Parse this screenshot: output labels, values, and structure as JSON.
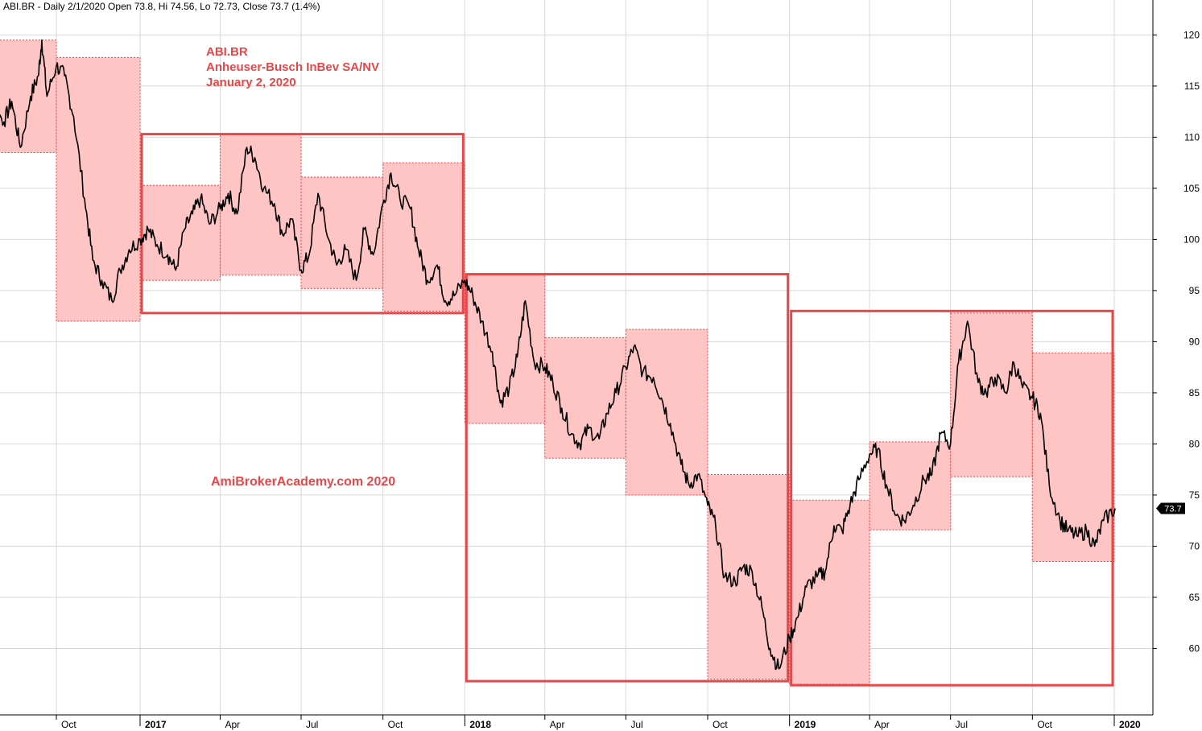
{
  "header": {
    "symbol": "ABI.BR",
    "interval": "Daily",
    "date": "2/1/2020",
    "text": "ABI.BR - Daily 2/1/2020 Open 73.8, Hi 74.56, Lo 72.73, Close 73.7 (1.4%)"
  },
  "annotations": {
    "ticker": "ABI.BR",
    "company": "Anheuser-Busch InBev SA/NV",
    "date": "January 2, 2020",
    "watermark": "AmiBrokerAcademy.com   2020"
  },
  "colors": {
    "accent": "#e8474a",
    "quarter_fill": "#ffc4c4",
    "price_line": "#000000",
    "grid": "#d8d8d8"
  },
  "chart_data": {
    "type": "line",
    "title": "",
    "y_axis_side": "right",
    "ylim": [
      53.5,
      122
    ],
    "y_ticks": [
      60,
      65,
      70,
      75,
      80,
      85,
      90,
      95,
      100,
      105,
      110,
      115,
      120
    ],
    "x_ticks": [
      {
        "label": "Oct",
        "x": "2016-10",
        "major": false
      },
      {
        "label": "2017",
        "x": "2017-01",
        "major": true
      },
      {
        "label": "Apr",
        "x": "2017-04",
        "major": false
      },
      {
        "label": "Jul",
        "x": "2017-07",
        "major": false
      },
      {
        "label": "Oct",
        "x": "2017-10",
        "major": false
      },
      {
        "label": "2018",
        "x": "2018-01",
        "major": true
      },
      {
        "label": "Apr",
        "x": "2018-04",
        "major": false
      },
      {
        "label": "Jul",
        "x": "2018-07",
        "major": false
      },
      {
        "label": "Oct",
        "x": "2018-10",
        "major": false
      },
      {
        "label": "2019",
        "x": "2019-01",
        "major": true
      },
      {
        "label": "Apr",
        "x": "2019-04",
        "major": false
      },
      {
        "label": "Jul",
        "x": "2019-07",
        "major": false
      },
      {
        "label": "Oct",
        "x": "2019-10",
        "major": false
      },
      {
        "label": "2020",
        "x": "2020-01",
        "major": true
      }
    ],
    "last_price": 73.7,
    "last_label": "73.7",
    "quarter_ranges": [
      {
        "from": "2016-07",
        "to": "2016-10",
        "low": 108.5,
        "high": 119.5
      },
      {
        "from": "2016-10",
        "to": "2017-01",
        "low": 92.0,
        "high": 117.8
      },
      {
        "from": "2017-01",
        "to": "2017-04",
        "low": 96.0,
        "high": 105.3
      },
      {
        "from": "2017-04",
        "to": "2017-07",
        "low": 96.5,
        "high": 110.3
      },
      {
        "from": "2017-07",
        "to": "2017-10",
        "low": 95.2,
        "high": 106.1
      },
      {
        "from": "2017-10",
        "to": "2018-01",
        "low": 93.0,
        "high": 107.5
      },
      {
        "from": "2018-01",
        "to": "2018-04",
        "low": 82.0,
        "high": 96.5
      },
      {
        "from": "2018-04",
        "to": "2018-07",
        "low": 78.6,
        "high": 90.4
      },
      {
        "from": "2018-07",
        "to": "2018-10",
        "low": 75.0,
        "high": 91.2
      },
      {
        "from": "2018-10",
        "to": "2019-01",
        "low": 57.0,
        "high": 77.0
      },
      {
        "from": "2019-01",
        "to": "2019-04",
        "low": 56.5,
        "high": 74.5
      },
      {
        "from": "2019-04",
        "to": "2019-07",
        "low": 71.6,
        "high": 80.2
      },
      {
        "from": "2019-07",
        "to": "2019-10",
        "low": 76.8,
        "high": 92.8
      },
      {
        "from": "2019-10",
        "to": "2020-01",
        "low": 68.5,
        "high": 88.9
      }
    ],
    "year_boxes": [
      {
        "from": "2017-01",
        "to": "2018-01",
        "low": 92.8,
        "high": 110.3
      },
      {
        "from": "2018-01",
        "to": "2019-01",
        "low": 56.8,
        "high": 96.6
      },
      {
        "from": "2019-01",
        "to": "2020-01",
        "low": 56.4,
        "high": 93.0
      }
    ],
    "price_series": [
      [
        "2016-07-01",
        112
      ],
      [
        "2016-07-10",
        110.5
      ],
      [
        "2016-07-20",
        113
      ],
      [
        "2016-08-01",
        111.5
      ],
      [
        "2016-08-10",
        113.5
      ],
      [
        "2016-08-20",
        109
      ],
      [
        "2016-09-01",
        114
      ],
      [
        "2016-09-10",
        116
      ],
      [
        "2016-09-14",
        119.5
      ],
      [
        "2016-09-20",
        114
      ],
      [
        "2016-10-01",
        117
      ],
      [
        "2016-10-10",
        116
      ],
      [
        "2016-10-20",
        112
      ],
      [
        "2016-11-01",
        104
      ],
      [
        "2016-11-10",
        98
      ],
      [
        "2016-11-20",
        96
      ],
      [
        "2016-12-01",
        94
      ],
      [
        "2016-12-10",
        97
      ],
      [
        "2016-12-20",
        99
      ],
      [
        "2017-01-01",
        100
      ],
      [
        "2017-01-10",
        101
      ],
      [
        "2017-01-20",
        99.5
      ],
      [
        "2017-02-01",
        98.5
      ],
      [
        "2017-02-10",
        97
      ],
      [
        "2017-02-20",
        101
      ],
      [
        "2017-03-01",
        102.5
      ],
      [
        "2017-03-10",
        104
      ],
      [
        "2017-03-20",
        101.5
      ],
      [
        "2017-04-01",
        103
      ],
      [
        "2017-04-10",
        104.5
      ],
      [
        "2017-04-20",
        102.5
      ],
      [
        "2017-05-01",
        109
      ],
      [
        "2017-05-10",
        108
      ],
      [
        "2017-05-20",
        105
      ],
      [
        "2017-06-01",
        103.5
      ],
      [
        "2017-06-10",
        100.5
      ],
      [
        "2017-06-20",
        102
      ],
      [
        "2017-07-01",
        97
      ],
      [
        "2017-07-10",
        98.5
      ],
      [
        "2017-07-20",
        104.5
      ],
      [
        "2017-08-01",
        100
      ],
      [
        "2017-08-10",
        97.5
      ],
      [
        "2017-08-20",
        99
      ],
      [
        "2017-09-01",
        96
      ],
      [
        "2017-09-10",
        101
      ],
      [
        "2017-09-20",
        98.5
      ],
      [
        "2017-10-01",
        103.5
      ],
      [
        "2017-10-10",
        106.5
      ],
      [
        "2017-10-20",
        104
      ],
      [
        "2017-11-01",
        103
      ],
      [
        "2017-11-10",
        99
      ],
      [
        "2017-11-20",
        96
      ],
      [
        "2017-12-01",
        97.5
      ],
      [
        "2017-12-10",
        94
      ],
      [
        "2017-12-20",
        94.5
      ],
      [
        "2018-01-01",
        96
      ],
      [
        "2018-01-10",
        94.5
      ],
      [
        "2018-01-20",
        92
      ],
      [
        "2018-02-01",
        89
      ],
      [
        "2018-02-10",
        84
      ],
      [
        "2018-02-20",
        85.5
      ],
      [
        "2018-03-01",
        88.5
      ],
      [
        "2018-03-10",
        94
      ],
      [
        "2018-03-20",
        88
      ],
      [
        "2018-04-01",
        87.5
      ],
      [
        "2018-04-10",
        86
      ],
      [
        "2018-04-20",
        83.5
      ],
      [
        "2018-05-01",
        81
      ],
      [
        "2018-05-10",
        80
      ],
      [
        "2018-05-20",
        81.5
      ],
      [
        "2018-06-01",
        80.5
      ],
      [
        "2018-06-10",
        83
      ],
      [
        "2018-06-20",
        85
      ],
      [
        "2018-07-01",
        87.5
      ],
      [
        "2018-07-10",
        89.5
      ],
      [
        "2018-07-20",
        87
      ],
      [
        "2018-08-01",
        86.5
      ],
      [
        "2018-08-10",
        84.5
      ],
      [
        "2018-08-20",
        82
      ],
      [
        "2018-09-01",
        78
      ],
      [
        "2018-09-10",
        76
      ],
      [
        "2018-09-20",
        77
      ],
      [
        "2018-10-01",
        74
      ],
      [
        "2018-10-10",
        72
      ],
      [
        "2018-10-20",
        67
      ],
      [
        "2018-11-01",
        66.5
      ],
      [
        "2018-11-10",
        68
      ],
      [
        "2018-11-20",
        67.5
      ],
      [
        "2018-12-01",
        64
      ],
      [
        "2018-12-10",
        60
      ],
      [
        "2018-12-20",
        58
      ],
      [
        "2019-01-01",
        61
      ],
      [
        "2019-01-10",
        63
      ],
      [
        "2019-01-20",
        66
      ],
      [
        "2019-02-01",
        67
      ],
      [
        "2019-02-10",
        67.5
      ],
      [
        "2019-02-20",
        72
      ],
      [
        "2019-03-01",
        71.5
      ],
      [
        "2019-03-10",
        74
      ],
      [
        "2019-03-20",
        76.5
      ],
      [
        "2019-04-01",
        79
      ],
      [
        "2019-04-10",
        79.5
      ],
      [
        "2019-04-20",
        76
      ],
      [
        "2019-05-01",
        73
      ],
      [
        "2019-05-10",
        72.5
      ],
      [
        "2019-05-20",
        74
      ],
      [
        "2019-06-01",
        76.5
      ],
      [
        "2019-06-10",
        77
      ],
      [
        "2019-06-20",
        81
      ],
      [
        "2019-07-01",
        80
      ],
      [
        "2019-07-10",
        88
      ],
      [
        "2019-07-20",
        92
      ],
      [
        "2019-08-01",
        86
      ],
      [
        "2019-08-10",
        85
      ],
      [
        "2019-08-20",
        86.5
      ],
      [
        "2019-09-01",
        85
      ],
      [
        "2019-09-10",
        88
      ],
      [
        "2019-09-20",
        85.5
      ],
      [
        "2019-10-01",
        84.5
      ],
      [
        "2019-10-10",
        83
      ],
      [
        "2019-10-20",
        76
      ],
      [
        "2019-11-01",
        72.5
      ],
      [
        "2019-11-10",
        71.5
      ],
      [
        "2019-11-20",
        71
      ],
      [
        "2019-12-01",
        71.5
      ],
      [
        "2019-12-10",
        70
      ],
      [
        "2019-12-20",
        72.5
      ],
      [
        "2020-01-02",
        73.7
      ]
    ]
  }
}
